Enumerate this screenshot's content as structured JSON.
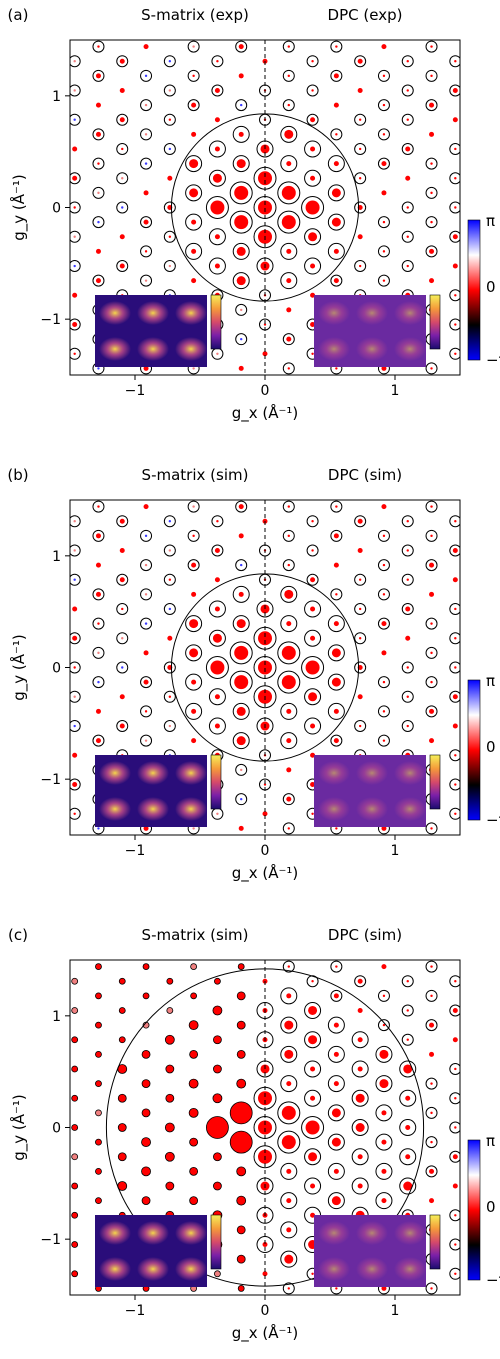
{
  "figure": {
    "colorbar_ticks": [
      "π",
      "0",
      "−π"
    ],
    "colorbar_colors": [
      "#0000ff",
      "#ffffff",
      "#ff0000",
      "#000000",
      "#0000ff"
    ],
    "inset_colors": [
      "#1a0c6e",
      "#7a1fa8",
      "#d64a6a",
      "#f59b3a",
      "#f5f05a"
    ]
  },
  "chart_data": [
    {
      "type": "scatter",
      "panel_label": "(a)",
      "left_title": "S-matrix (exp)",
      "right_title": "DPC (exp)",
      "xlabel": "g_x (Å⁻¹)",
      "ylabel": "g_y (Å⁻¹)",
      "xlim": [
        -1.5,
        1.5
      ],
      "ylim": [
        -1.5,
        1.5
      ],
      "xticks": [
        -1,
        0,
        1
      ],
      "yticks": [
        -1,
        0,
        1
      ],
      "xtick_labels": [
        "−1",
        "0",
        "1"
      ],
      "ytick_labels": [
        "−1",
        "0",
        "1"
      ],
      "divider_x": 0,
      "aperture_radius": 0.72,
      "lattice": {
        "a": 0.183,
        "b": 0.262
      },
      "series": [
        {
          "points": [
            [
              -0.183,
              0.262
            ],
            [
              -0.183,
              -0.262
            ],
            [
              0.183,
              0.262
            ],
            [
              0.183,
              -0.262
            ],
            [
              -0.366,
              0.524
            ],
            [
              -0.366,
              -0.524
            ],
            [
              0.366,
              0.524
            ],
            [
              0.366,
              -0.524
            ],
            [
              -0.549,
              0.262
            ],
            [
              -0.549,
              -0.262
            ],
            [
              0.549,
              0.262
            ],
            [
              0.549,
              -0.262
            ],
            [
              0.0,
              0.524
            ],
            [
              0.0,
              -0.524
            ],
            [
              -0.366,
              0.0
            ],
            [
              0.366,
              0.0
            ]
          ]
        }
      ],
      "insets": [
        "S-matrix reconstruction",
        "DPC reconstruction"
      ]
    },
    {
      "type": "scatter",
      "panel_label": "(b)",
      "left_title": "S-matrix (sim)",
      "right_title": "DPC (sim)",
      "xlabel": "g_x (Å⁻¹)",
      "ylabel": "g_y (Å⁻¹)",
      "xlim": [
        -1.5,
        1.5
      ],
      "ylim": [
        -1.5,
        1.5
      ],
      "xticks": [
        -1,
        0,
        1
      ],
      "yticks": [
        -1,
        0,
        1
      ],
      "xtick_labels": [
        "−1",
        "0",
        "1"
      ],
      "ytick_labels": [
        "−1",
        "0",
        "1"
      ],
      "divider_x": 0,
      "aperture_radius": 0.72,
      "lattice": {
        "a": 0.183,
        "b": 0.262
      },
      "insets": [
        "S-matrix reconstruction",
        "DPC reconstruction"
      ]
    },
    {
      "type": "scatter",
      "panel_label": "(c)",
      "left_title": "S-matrix (sim)",
      "right_title": "DPC (sim)",
      "xlabel": "g_x (Å⁻¹)",
      "ylabel": "g_y (Å⁻¹)",
      "xlim": [
        -1.5,
        1.5
      ],
      "ylim": [
        -1.5,
        1.5
      ],
      "xticks": [
        -1,
        0,
        1
      ],
      "yticks": [
        -1,
        0,
        1
      ],
      "xtick_labels": [
        "−1",
        "0",
        "1"
      ],
      "ytick_labels": [
        "−1",
        "0",
        "1"
      ],
      "divider_x": 0,
      "aperture_radius": 1.22,
      "lattice": {
        "a": 0.183,
        "b": 0.262
      },
      "insets": [
        "S-matrix reconstruction",
        "DPC reconstruction"
      ]
    }
  ]
}
